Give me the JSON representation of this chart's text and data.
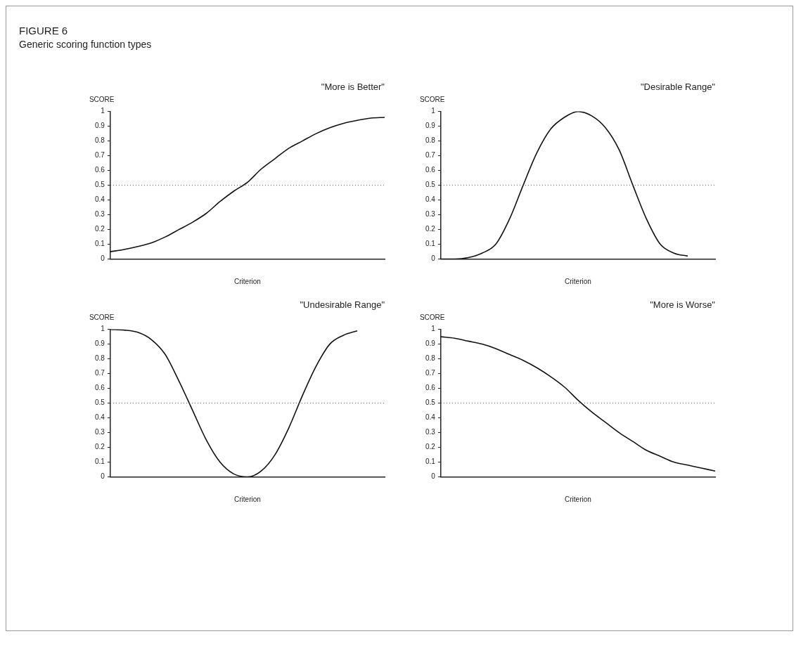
{
  "chart_data": [
    {
      "type": "other",
      "title": "FIGURE 6",
      "subtitle": "Generic scoring function types"
    },
    {
      "type": "line",
      "title": "\"More is Better\"",
      "xlabel": "Criterion",
      "ylabel": "SCORE",
      "categories": [
        null,
        null,
        null,
        null,
        null,
        null,
        null,
        null,
        null,
        null,
        null,
        null,
        null,
        null,
        null,
        null,
        null,
        null,
        null,
        null,
        null
      ],
      "series": [
        {
          "color": "#111111",
          "values": [
            0.05,
            0.065,
            0.085,
            0.11,
            0.15,
            0.2,
            0.25,
            0.31,
            0.39,
            0.46,
            0.52,
            0.61,
            0.68,
            0.75,
            0.8,
            0.85,
            0.89,
            0.92,
            0.94,
            0.955,
            0.96
          ]
        }
      ],
      "ylim": [
        0,
        1
      ],
      "yticks": [
        0,
        0.1,
        0.2,
        0.3,
        0.4,
        0.5,
        0.6,
        0.7,
        0.8,
        0.9,
        1
      ],
      "grid": false,
      "legend": false,
      "marker": "none",
      "line_style": "solid",
      "ref_lines": [
        {
          "axis": "y",
          "value": 0.5,
          "color": "#555555",
          "line_style": "dotted"
        }
      ]
    },
    {
      "type": "line",
      "title": "\"Desirable Range\"",
      "xlabel": "Criterion",
      "ylabel": "SCORE",
      "categories": [
        null,
        null,
        null,
        null,
        null,
        null,
        null,
        null,
        null,
        null,
        null,
        null,
        null,
        null,
        null,
        null,
        null,
        null,
        null,
        null,
        null
      ],
      "series": [
        {
          "color": "#111111",
          "values": [
            0,
            0,
            0.01,
            0.04,
            0.1,
            0.27,
            0.5,
            0.72,
            0.88,
            0.96,
            1,
            0.97,
            0.89,
            0.74,
            0.5,
            0.27,
            0.1,
            0.04,
            0.02,
            null,
            null
          ]
        }
      ],
      "ylim": [
        0,
        1
      ],
      "yticks": [
        0,
        0.1,
        0.2,
        0.3,
        0.4,
        0.5,
        0.6,
        0.7,
        0.8,
        0.9,
        1
      ],
      "grid": false,
      "legend": false,
      "marker": "none",
      "line_style": "solid",
      "ref_lines": [
        {
          "axis": "y",
          "value": 0.5,
          "color": "#555555",
          "line_style": "dotted"
        }
      ]
    },
    {
      "type": "line",
      "title": "\"Undesirable Range\"",
      "xlabel": "Criterion",
      "ylabel": "SCORE",
      "categories": [
        null,
        null,
        null,
        null,
        null,
        null,
        null,
        null,
        null,
        null,
        null,
        null,
        null,
        null,
        null,
        null,
        null,
        null,
        null,
        null,
        null
      ],
      "series": [
        {
          "color": "#111111",
          "values": [
            1,
            0.995,
            0.98,
            0.93,
            0.83,
            0.65,
            0.45,
            0.25,
            0.1,
            0.02,
            0,
            0.04,
            0.15,
            0.33,
            0.55,
            0.75,
            0.9,
            0.96,
            0.99,
            null,
            null
          ]
        }
      ],
      "ylim": [
        0,
        1
      ],
      "yticks": [
        0,
        0.1,
        0.2,
        0.3,
        0.4,
        0.5,
        0.6,
        0.7,
        0.8,
        0.9,
        1
      ],
      "grid": false,
      "legend": false,
      "marker": "none",
      "line_style": "solid",
      "ref_lines": [
        {
          "axis": "y",
          "value": 0.5,
          "color": "#555555",
          "line_style": "dotted"
        }
      ]
    },
    {
      "type": "line",
      "title": "\"More is Worse\"",
      "xlabel": "Criterion",
      "ylabel": "SCORE",
      "categories": [
        null,
        null,
        null,
        null,
        null,
        null,
        null,
        null,
        null,
        null,
        null,
        null,
        null,
        null,
        null,
        null,
        null,
        null,
        null,
        null,
        null
      ],
      "series": [
        {
          "color": "#111111",
          "values": [
            0.95,
            0.94,
            0.92,
            0.9,
            0.87,
            0.83,
            0.79,
            0.74,
            0.68,
            0.61,
            0.52,
            0.44,
            0.37,
            0.3,
            0.24,
            0.18,
            0.14,
            0.1,
            0.08,
            0.06,
            0.04
          ]
        }
      ],
      "ylim": [
        0,
        1
      ],
      "yticks": [
        0,
        0.1,
        0.2,
        0.3,
        0.4,
        0.5,
        0.6,
        0.7,
        0.8,
        0.9,
        1
      ],
      "grid": false,
      "legend": false,
      "marker": "none",
      "line_style": "solid",
      "ref_lines": [
        {
          "axis": "y",
          "value": 0.5,
          "color": "#555555",
          "line_style": "dotted"
        }
      ]
    }
  ]
}
